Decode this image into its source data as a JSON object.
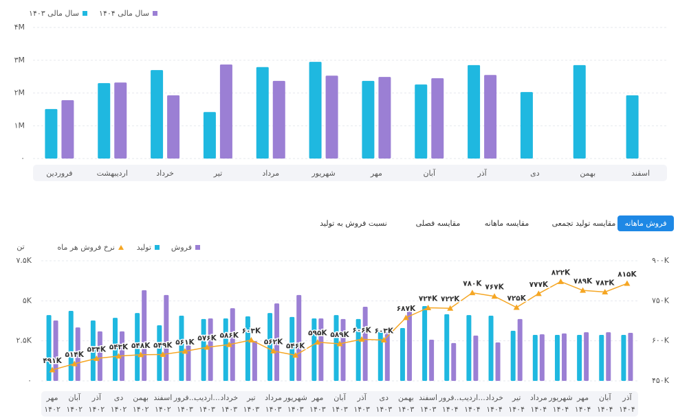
{
  "chart_data": [
    {
      "type": "bar",
      "categories": [
        "فروردین",
        "اردیبهشت",
        "خرداد",
        "تیر",
        "مرداد",
        "شهریور",
        "مهر",
        "آبان",
        "آذر",
        "دی",
        "بهمن",
        "اسفند"
      ],
      "series": [
        {
          "name": "سال مالی ۱۴۰۳",
          "color": "#1fb8e0",
          "values": [
            1510000,
            2300000,
            2700000,
            1420000,
            2790000,
            2950000,
            2370000,
            2260000,
            2850000,
            2030000,
            2850000,
            1930000
          ]
        },
        {
          "name": "سال مالی ۱۴۰۴",
          "color": "#9b7fd4",
          "values": [
            1780000,
            2320000,
            1930000,
            2870000,
            2370000,
            2530000,
            2490000,
            2450000,
            2550000,
            null,
            null,
            null
          ]
        }
      ],
      "ylim": [
        0,
        4000000
      ],
      "yticks": [
        {
          "value": 0,
          "label": "۰"
        },
        {
          "value": 1000000,
          "label": "۱M"
        },
        {
          "value": 2000000,
          "label": "۲M"
        },
        {
          "value": 3000000,
          "label": "۳M"
        },
        {
          "value": 4000000,
          "label": "۴M"
        }
      ],
      "grid": true
    },
    {
      "type": "combo",
      "y_label": "تن",
      "categories": [
        [
          "مهر",
          "۱۴۰۲"
        ],
        [
          "آبان",
          "۱۴۰۲"
        ],
        [
          "آذر",
          "۱۴۰۲"
        ],
        [
          "دی",
          "۱۴۰۲"
        ],
        [
          "بهمن",
          "۱۴۰۲"
        ],
        [
          "اسفند",
          "۱۴۰۲"
        ],
        [
          "فرور...",
          "۱۴۰۳"
        ],
        [
          "اردیب...",
          "۱۴۰۳"
        ],
        [
          "خرداد",
          "۱۴۰۳"
        ],
        [
          "تیر",
          "۱۴۰۳"
        ],
        [
          "مرداد",
          "۱۴۰۳"
        ],
        [
          "شهریور",
          "۱۴۰۳"
        ],
        [
          "مهر",
          "۱۴۰۳"
        ],
        [
          "آبان",
          "۱۴۰۳"
        ],
        [
          "آذر",
          "۱۴۰۳"
        ],
        [
          "دی",
          "۱۴۰۳"
        ],
        [
          "بهمن",
          "۱۴۰۳"
        ],
        [
          "اسفند",
          "۱۴۰۳"
        ],
        [
          "فرور...",
          "۱۴۰۴"
        ],
        [
          "اردیب...",
          "۱۴۰۴"
        ],
        [
          "خرداد",
          "۱۴۰۴"
        ],
        [
          "تیر",
          "۱۴۰۴"
        ],
        [
          "مرداد",
          "۱۴۰۴"
        ],
        [
          "شهریور",
          "۱۴۰۴"
        ],
        [
          "مهر",
          "۱۴۰۴"
        ],
        [
          "آبان",
          "۱۴۰۴"
        ],
        [
          "آذر",
          "۱۴۰۴"
        ]
      ],
      "series": [
        {
          "name": "فروش",
          "color": "#9b7fd4",
          "type": "bar",
          "values": [
            3770,
            3340,
            3090,
            3090,
            5660,
            5360,
            2230,
            3900,
            4540,
            2490,
            4840,
            5360,
            3900,
            3860,
            4630,
            3040,
            4590,
            2570,
            2360,
            2830,
            2400,
            3860,
            2910,
            2960,
            3040,
            3040,
            3000
          ]
        },
        {
          "name": "تولید",
          "color": "#1fb8e0",
          "type": "bar",
          "values": [
            4110,
            4370,
            3770,
            3940,
            4240,
            3470,
            4070,
            3860,
            3900,
            4030,
            4240,
            3990,
            3900,
            4110,
            3860,
            3170,
            3300,
            4670,
            4160,
            4110,
            4070,
            3130,
            2870,
            2870,
            2870,
            2870,
            2870
          ]
        },
        {
          "name": "نرخ فروش هر ماه",
          "color": "#f5a623",
          "type": "line",
          "axis": "y2",
          "values": [
            491000,
            514000,
            534000,
            543000,
            548000,
            549000,
            561000,
            576000,
            586000,
            603000,
            562000,
            546000,
            595000,
            589000,
            606000,
            603000,
            687000,
            724000,
            722000,
            780000,
            767000,
            725000,
            777000,
            822000,
            789000,
            783000,
            815000
          ],
          "value_labels": [
            "۴۹۱K",
            "۵۱۴K",
            "۵۳۴K",
            "۵۴۳K",
            "۵۴۸K",
            "۵۴۹K",
            "۵۶۱K",
            "۵۷۶K",
            "۵۸۶K",
            "۶۰۳K",
            "۵۶۲K",
            "۵۴۶K",
            "۵۹۵K",
            "۵۸۹K",
            "۶۰۶K",
            "۶۰۳K",
            "۶۸۷K",
            "۷۲۴K",
            "۷۲۲K",
            "۷۸۰K",
            "۷۶۷K",
            "۷۲۵K",
            "۷۷۷K",
            "۸۲۲K",
            "۷۸۹K",
            "۷۸۳K",
            "۸۱۵K"
          ]
        }
      ],
      "ylim": [
        0,
        7500
      ],
      "yticks": [
        {
          "value": 0,
          "label": "۰"
        },
        {
          "value": 2500,
          "label": "۲.۵K"
        },
        {
          "value": 5000,
          "label": "۵K"
        },
        {
          "value": 7500,
          "label": "۷.۵K"
        }
      ],
      "y2lim": [
        450000,
        900000
      ],
      "y2ticks": [
        {
          "value": 450000,
          "label": "۴۵۰K"
        },
        {
          "value": 600000,
          "label": "۶۰۰K"
        },
        {
          "value": 750000,
          "label": "۷۵۰K"
        },
        {
          "value": 900000,
          "label": "۹۰۰K"
        }
      ],
      "grid": true
    }
  ],
  "tabs": [
    {
      "label": "فروش ماهانه",
      "active": true
    },
    {
      "label": "مقایسه تولید تجمعی",
      "active": false
    },
    {
      "label": "مقایسه ماهانه",
      "active": false
    },
    {
      "label": "مقایسه فصلی",
      "active": false
    },
    {
      "label": "نسبت فروش به تولید",
      "active": false
    }
  ]
}
